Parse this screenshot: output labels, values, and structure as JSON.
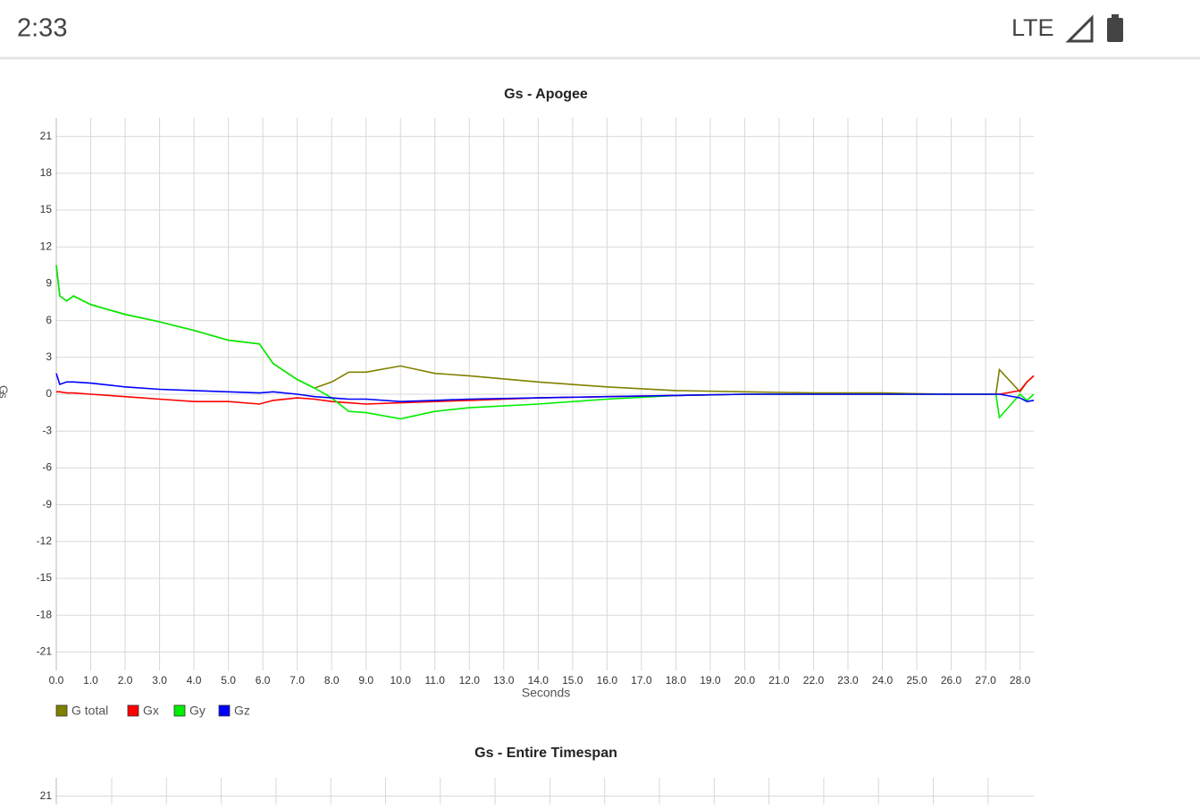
{
  "status_bar": {
    "time": "2:33",
    "network": "LTE"
  },
  "chart_data": [
    {
      "type": "line",
      "title": "Gs - Apogee",
      "x_label": "Seconds",
      "y_label": "Gs",
      "x": [
        0,
        0.1,
        0.3,
        0.5,
        1,
        2,
        3,
        4,
        5,
        5.9,
        6.3,
        7,
        7.5,
        8,
        8.5,
        9,
        10,
        11,
        12,
        14,
        16,
        18,
        20,
        22,
        24,
        26,
        27.3,
        27.4,
        28,
        28.2,
        28.4
      ],
      "series": [
        {
          "name": "G total",
          "color": "#808000",
          "values": [
            10.5,
            8,
            7.6,
            8,
            7.3,
            6.5,
            5.9,
            5.2,
            4.4,
            4.1,
            2.5,
            1.2,
            0.5,
            1,
            1.8,
            1.8,
            2.3,
            1.7,
            1.5,
            1,
            0.6,
            0.3,
            0.2,
            0.1,
            0.1,
            0,
            0,
            2,
            0.2,
            1,
            1.5
          ]
        },
        {
          "name": "Gx",
          "color": "#ff0000",
          "values": [
            0.2,
            0.2,
            0.1,
            0.1,
            0,
            -0.2,
            -0.4,
            -0.6,
            -0.6,
            -0.8,
            -0.5,
            -0.3,
            -0.4,
            -0.6,
            -0.7,
            -0.8,
            -0.7,
            -0.6,
            -0.5,
            -0.3,
            -0.2,
            -0.1,
            0,
            0,
            0,
            0,
            0,
            0,
            0.3,
            1,
            1.5
          ]
        },
        {
          "name": "Gy",
          "color": "#00ee00",
          "values": [
            10.5,
            8,
            7.6,
            8,
            7.3,
            6.5,
            5.9,
            5.2,
            4.4,
            4.1,
            2.5,
            1.2,
            0.5,
            -0.3,
            -1.4,
            -1.5,
            -2,
            -1.4,
            -1.1,
            -0.8,
            -0.4,
            -0.1,
            0,
            0,
            0,
            0,
            0,
            -1.9,
            0,
            -0.5,
            0
          ]
        },
        {
          "name": "Gz",
          "color": "#0000ff",
          "values": [
            1.7,
            0.8,
            1,
            1,
            0.9,
            0.6,
            0.4,
            0.3,
            0.2,
            0.1,
            0.2,
            0,
            -0.2,
            -0.3,
            -0.4,
            -0.4,
            -0.6,
            -0.5,
            -0.4,
            -0.3,
            -0.2,
            -0.1,
            0,
            0,
            0,
            0,
            0,
            0,
            -0.3,
            -0.6,
            -0.5
          ]
        }
      ],
      "xlim": [
        0,
        28.4
      ],
      "xticks": [
        {
          "value": 0,
          "label": "0.0"
        },
        {
          "value": 1,
          "label": "1.0"
        },
        {
          "value": 2,
          "label": "2.0"
        },
        {
          "value": 3,
          "label": "3.0"
        },
        {
          "value": 4,
          "label": "4.0"
        },
        {
          "value": 5,
          "label": "5.0"
        },
        {
          "value": 6,
          "label": "6.0"
        },
        {
          "value": 7,
          "label": "7.0"
        },
        {
          "value": 8,
          "label": "8.0"
        },
        {
          "value": 9,
          "label": "9.0"
        },
        {
          "value": 10,
          "label": "10.0"
        },
        {
          "value": 11,
          "label": "11.0"
        },
        {
          "value": 12,
          "label": "12.0"
        },
        {
          "value": 13,
          "label": "13.0"
        },
        {
          "value": 14,
          "label": "14.0"
        },
        {
          "value": 15,
          "label": "15.0"
        },
        {
          "value": 16,
          "label": "16.0"
        },
        {
          "value": 17,
          "label": "17.0"
        },
        {
          "value": 18,
          "label": "18.0"
        },
        {
          "value": 19,
          "label": "19.0"
        },
        {
          "value": 20,
          "label": "20.0"
        },
        {
          "value": 21,
          "label": "21.0"
        },
        {
          "value": 22,
          "label": "22.0"
        },
        {
          "value": 23,
          "label": "23.0"
        },
        {
          "value": 24,
          "label": "24.0"
        },
        {
          "value": 25,
          "label": "25.0"
        },
        {
          "value": 26,
          "label": "26.0"
        },
        {
          "value": 27,
          "label": "27.0"
        },
        {
          "value": 28,
          "label": "28.0"
        }
      ],
      "ylim": [
        -22.5,
        22.5
      ],
      "yticks": [
        -21,
        -18,
        -15,
        -12,
        -9,
        -6,
        -3,
        0,
        3,
        6,
        9,
        12,
        15,
        18,
        21
      ],
      "grid": true,
      "legend": "bottom-left"
    },
    {
      "type": "line",
      "title": "Gs - Entire Timespan",
      "ylim": [
        -22.5,
        22.5
      ],
      "yticks": [
        21
      ],
      "grid": true
    }
  ]
}
